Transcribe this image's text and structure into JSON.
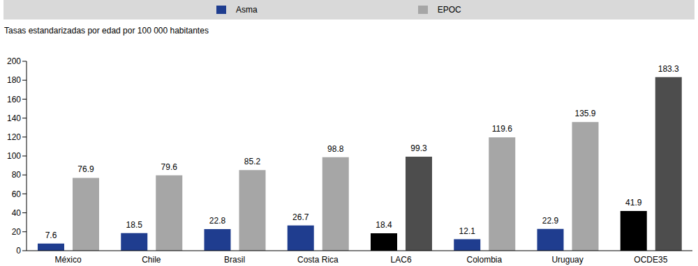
{
  "chart_data": {
    "type": "bar",
    "y_label": "Tasas estandarizadas por edad por 100 000 habitantes",
    "categories": [
      "México",
      "Chile",
      "Brasil",
      "Costa Rica",
      "LAC6",
      "Colombia",
      "Uruguay",
      "OCDE35"
    ],
    "series": [
      {
        "name": "Asma",
        "color": "#1f3d8f",
        "colors": [
          "#1f3d8f",
          "#1f3d8f",
          "#1f3d8f",
          "#1f3d8f",
          "#000000",
          "#1f3d8f",
          "#1f3d8f",
          "#000000"
        ],
        "values": [
          7.6,
          18.5,
          22.8,
          26.7,
          18.4,
          12.1,
          22.9,
          41.9
        ]
      },
      {
        "name": "EPOC",
        "color": "#a6a6a6",
        "colors": [
          "#a6a6a6",
          "#a6a6a6",
          "#a6a6a6",
          "#a6a6a6",
          "#4d4d4d",
          "#a6a6a6",
          "#a6a6a6",
          "#4d4d4d"
        ],
        "values": [
          76.9,
          79.6,
          85.2,
          98.8,
          99.3,
          119.6,
          135.9,
          183.3
        ]
      }
    ],
    "ylim": [
      0,
      200
    ],
    "yticks": [
      0,
      20,
      40,
      60,
      80,
      100,
      120,
      140,
      160,
      180,
      200
    ],
    "grid": false,
    "legend": "top",
    "data_labels": true
  }
}
